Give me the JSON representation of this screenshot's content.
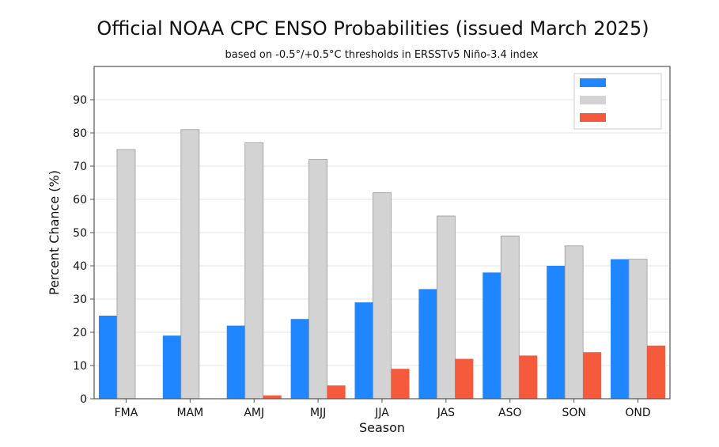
{
  "chart_data": {
    "type": "bar",
    "title": "Official NOAA CPC ENSO Probabilities (issued March 2025)",
    "subtitle": "based on -0.5°/+0.5°C thresholds in ERSSTv5 Niño-3.4 index",
    "xlabel": "Season",
    "ylabel": "Percent Chance (%)",
    "ylim": [
      0,
      100
    ],
    "y_ticks": [
      "0",
      "10",
      "20",
      "30",
      "40",
      "50",
      "60",
      "70",
      "80",
      "90"
    ],
    "categories": [
      "FMA",
      "MAM",
      "AMJ",
      "MJJ",
      "JJA",
      "JAS",
      "ASO",
      "SON",
      "OND"
    ],
    "grid": true,
    "legend_position": "top-right",
    "series": [
      {
        "color": "#1f86ff",
        "values": [
          25,
          19,
          22,
          24,
          29,
          33,
          38,
          40,
          42
        ]
      },
      {
        "color": "#d3d3d3",
        "values": [
          75,
          81,
          77,
          72,
          62,
          55,
          49,
          46,
          42
        ]
      },
      {
        "color": "#f55a3c",
        "values": [
          0,
          0,
          1,
          4,
          9,
          12,
          13,
          14,
          16
        ]
      }
    ]
  }
}
